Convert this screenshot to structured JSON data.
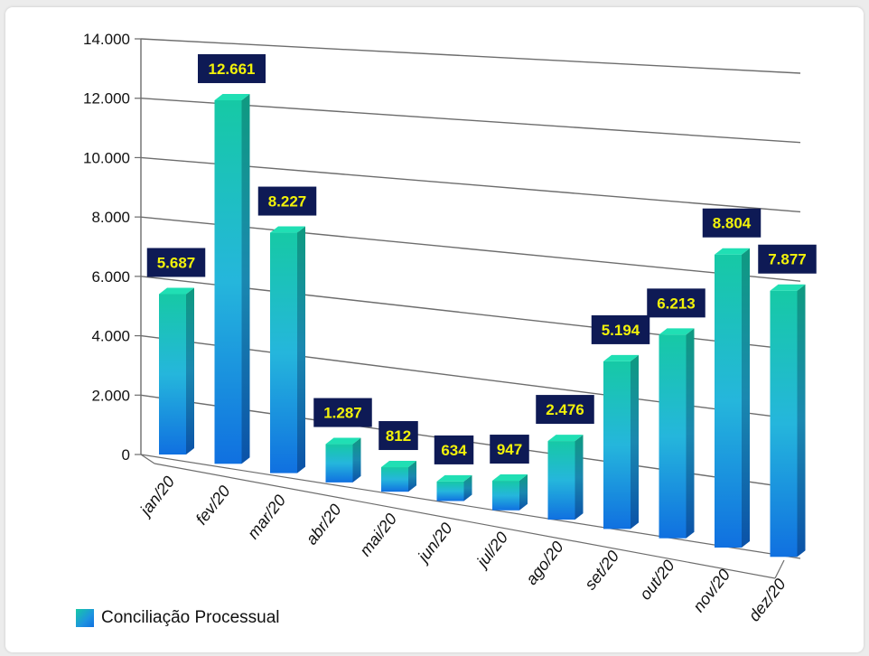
{
  "chart_data": {
    "type": "bar",
    "categories": [
      "jan/20",
      "fev/20",
      "mar/20",
      "abr/20",
      "mai/20",
      "jun/20",
      "jul/20",
      "ago/20",
      "set/20",
      "out/20",
      "nov/20",
      "dez/20"
    ],
    "series": [
      {
        "name": "Conciliação Processual",
        "values": [
          5687,
          12661,
          8227,
          1287,
          812,
          634,
          947,
          2476,
          5194,
          6213,
          8804,
          7877
        ],
        "labels": [
          "5.687",
          "12.661",
          "8.227",
          "1.287",
          "812",
          "634",
          "947",
          "2.476",
          "5.194",
          "6.213",
          "8.804",
          "7.877"
        ]
      }
    ],
    "yticks": [
      "0",
      "2.000",
      "4.000",
      "6.000",
      "8.000",
      "10.000",
      "12.000",
      "14.000"
    ],
    "ylim": [
      0,
      14000
    ],
    "grid": true,
    "legend": "bottom-left",
    "style": "3d-perspective",
    "colors": {
      "bar_top": "#16c9a5",
      "bar_mid": "#25b6dc",
      "bar_bottom": "#1070e0",
      "label_bg": "#0e1a55",
      "label_text": "#f2f20a"
    }
  }
}
